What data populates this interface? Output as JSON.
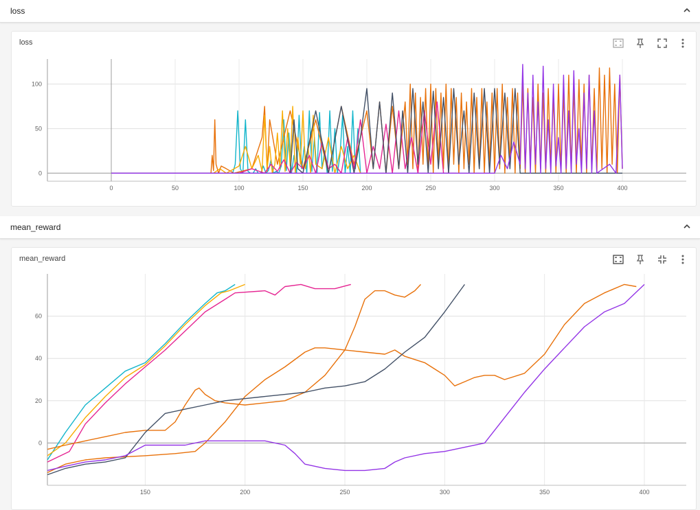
{
  "sections": {
    "loss_header": "loss",
    "reward_header": "mean_reward"
  },
  "cards": {
    "loss_title": "loss",
    "reward_title": "mean_reward"
  },
  "icons": {
    "collapse": "chevron-up-icon",
    "fit": "fit-domain-icon",
    "pin": "pin-icon",
    "expand": "fullscreen-icon",
    "collapse_full": "exit-fullscreen-icon",
    "more": "more-vert-icon"
  },
  "colors": {
    "teal": "#12b5cb",
    "orange": "#e8710a",
    "amber": "#f9ab00",
    "pink": "#e52592",
    "slate": "#425066",
    "purple": "#9334e6",
    "brown": "#7b4b2a"
  },
  "chart_data": [
    {
      "type": "line",
      "title": "loss",
      "xlabel": "",
      "ylabel": "",
      "xlim": [
        -50,
        450
      ],
      "ylim": [
        -9,
        128
      ],
      "xticks": [
        0,
        50,
        100,
        150,
        200,
        250,
        300,
        350,
        400
      ],
      "yticks": [
        0,
        50,
        100
      ],
      "grid": true,
      "legend": "none",
      "series": [
        {
          "name": "teal",
          "color": "#12b5cb",
          "x": [
            0,
            95,
            97,
            99,
            101,
            103,
            105,
            107,
            109,
            111,
            113,
            115,
            117,
            119,
            121,
            123,
            125,
            127,
            129,
            131,
            133,
            135,
            137,
            139,
            141,
            143,
            145,
            147,
            149,
            151,
            153,
            155,
            157,
            159,
            161,
            163,
            165,
            167,
            169,
            171,
            173,
            175,
            177,
            179,
            181,
            183,
            185,
            187,
            189,
            191,
            193,
            195
          ],
          "y": [
            0,
            0,
            10,
            70,
            5,
            0,
            60,
            2,
            0,
            0,
            5,
            0,
            0,
            8,
            0,
            3,
            15,
            0,
            2,
            0,
            8,
            60,
            3,
            45,
            0,
            20,
            0,
            65,
            5,
            30,
            0,
            70,
            2,
            40,
            0,
            68,
            5,
            25,
            0,
            70,
            2,
            50,
            0,
            20,
            65,
            0,
            30,
            0,
            70,
            5,
            50,
            0
          ]
        },
        {
          "name": "orange",
          "color": "#e8710a",
          "x": [
            0,
            78,
            79,
            80,
            81,
            82,
            84,
            86,
            90,
            96,
            110,
            118,
            120,
            122,
            124,
            130,
            140,
            150,
            160,
            170,
            180,
            190,
            200,
            205,
            210,
            215,
            220,
            225,
            230,
            232,
            234,
            236,
            238,
            240,
            242,
            244,
            246,
            248,
            250,
            252,
            254,
            256,
            258,
            260,
            262,
            264,
            266,
            268,
            270,
            272,
            274,
            276,
            278,
            280,
            282,
            284,
            286,
            288,
            290,
            292,
            294,
            296,
            298,
            300,
            302,
            304,
            306,
            308,
            310,
            312,
            314,
            316,
            318,
            320,
            322,
            324,
            326,
            328,
            330,
            332,
            334,
            336,
            338,
            340,
            342,
            344,
            346,
            348,
            350,
            352,
            354,
            356,
            358,
            360,
            362,
            364,
            366,
            368,
            370,
            372,
            374,
            376,
            378,
            380,
            382,
            384,
            386,
            388,
            390,
            392,
            394,
            396,
            398,
            400
          ],
          "y": [
            0,
            0,
            20,
            3,
            60,
            10,
            0,
            8,
            5,
            0,
            5,
            40,
            75,
            2,
            60,
            10,
            70,
            5,
            60,
            0,
            75,
            10,
            70,
            5,
            80,
            0,
            75,
            5,
            80,
            10,
            100,
            5,
            90,
            0,
            85,
            10,
            95,
            5,
            100,
            0,
            95,
            10,
            90,
            5,
            100,
            0,
            95,
            10,
            85,
            0,
            90,
            5,
            80,
            10,
            95,
            0,
            85,
            5,
            95,
            0,
            80,
            10,
            90,
            0,
            95,
            5,
            100,
            0,
            85,
            10,
            95,
            0,
            90,
            5,
            100,
            0,
            95,
            10,
            85,
            0,
            100,
            5,
            90,
            0,
            95,
            10,
            85,
            0,
            100,
            5,
            90,
            0,
            110,
            5,
            95,
            0,
            105,
            10,
            100,
            0,
            110,
            5,
            95,
            0,
            118,
            5,
            110,
            0,
            118,
            10,
            100,
            0,
            110,
            5
          ]
        },
        {
          "name": "amber",
          "color": "#f9ab00",
          "x": [
            0,
            80,
            85,
            90,
            100,
            105,
            110,
            115,
            118,
            120,
            122,
            124,
            126,
            128,
            130,
            132,
            134,
            136,
            138,
            140,
            142,
            144,
            146,
            148,
            150,
            152,
            154,
            156,
            158,
            160,
            165,
            170,
            175,
            180,
            185,
            190,
            195,
            200
          ],
          "y": [
            0,
            0,
            5,
            0,
            8,
            30,
            5,
            20,
            2,
            65,
            5,
            30,
            0,
            10,
            45,
            5,
            70,
            2,
            50,
            8,
            75,
            0,
            40,
            10,
            70,
            5,
            30,
            0,
            65,
            10,
            5,
            40,
            0,
            30,
            5,
            20,
            0,
            0
          ]
        },
        {
          "name": "pink",
          "color": "#e52592",
          "x": [
            0,
            100,
            110,
            120,
            125,
            130,
            135,
            140,
            145,
            150,
            155,
            160,
            165,
            170,
            175,
            180,
            185,
            190,
            195,
            200,
            205,
            210,
            215,
            220,
            225,
            230,
            235,
            240,
            245,
            250,
            255,
            260,
            270
          ],
          "y": [
            0,
            0,
            5,
            0,
            10,
            2,
            15,
            0,
            12,
            5,
            20,
            0,
            35,
            5,
            10,
            0,
            40,
            5,
            60,
            0,
            30,
            5,
            55,
            0,
            70,
            5,
            40,
            0,
            70,
            10,
            80,
            0,
            0
          ]
        },
        {
          "name": "slate",
          "color": "#425066",
          "x": [
            0,
            140,
            143,
            146,
            150,
            160,
            170,
            180,
            190,
            195,
            200,
            205,
            210,
            215,
            220,
            225,
            228,
            232,
            236,
            240,
            244,
            248,
            252,
            256,
            260,
            264,
            268,
            272,
            276,
            280,
            284,
            288,
            292,
            296,
            300,
            304,
            308,
            312,
            316,
            320,
            400
          ],
          "y": [
            0,
            0,
            60,
            5,
            0,
            70,
            0,
            75,
            0,
            40,
            95,
            5,
            80,
            0,
            90,
            5,
            70,
            0,
            95,
            10,
            80,
            0,
            92,
            5,
            85,
            0,
            95,
            10,
            70,
            0,
            90,
            5,
            95,
            0,
            95,
            10,
            90,
            5,
            95,
            0,
            0
          ]
        },
        {
          "name": "purple",
          "color": "#9334e6",
          "x": [
            0,
            300,
            305,
            310,
            315,
            320,
            322,
            324,
            326,
            328,
            330,
            332,
            334,
            336,
            338,
            340,
            342,
            344,
            346,
            348,
            350,
            352,
            354,
            356,
            358,
            360,
            362,
            364,
            366,
            368,
            370,
            372,
            374,
            376,
            378,
            380,
            385,
            390,
            395,
            398,
            400
          ],
          "y": [
            0,
            0,
            20,
            5,
            35,
            10,
            122,
            5,
            90,
            0,
            110,
            10,
            80,
            0,
            120,
            5,
            60,
            0,
            100,
            8,
            40,
            0,
            110,
            5,
            70,
            0,
            115,
            10,
            50,
            0,
            90,
            5,
            110,
            0,
            70,
            0,
            5,
            10,
            0,
            110,
            5
          ]
        }
      ]
    },
    {
      "type": "line",
      "title": "mean_reward",
      "xlabel": "",
      "ylabel": "",
      "xlim": [
        101,
        421
      ],
      "ylim": [
        -20,
        80
      ],
      "xticks": [
        150,
        200,
        250,
        300,
        350,
        400
      ],
      "yticks": [
        0,
        20,
        40,
        60
      ],
      "grid": true,
      "legend": "none",
      "series": [
        {
          "name": "teal",
          "color": "#12b5cb",
          "x": [
            101,
            110,
            120,
            130,
            140,
            150,
            160,
            170,
            180,
            186,
            190,
            195
          ],
          "y": [
            -8,
            5,
            18,
            26,
            34,
            38,
            47,
            57,
            66,
            71,
            72,
            75
          ]
        },
        {
          "name": "amber",
          "color": "#f9ab00",
          "x": [
            101,
            110,
            120,
            130,
            140,
            150,
            160,
            170,
            180,
            188,
            192,
            200
          ],
          "y": [
            -6,
            0,
            12,
            22,
            31,
            37,
            46,
            56,
            65,
            71,
            72,
            75
          ]
        },
        {
          "name": "pink",
          "color": "#e52592",
          "x": [
            101,
            112,
            120,
            130,
            140,
            150,
            160,
            170,
            180,
            190,
            195,
            210,
            215,
            220,
            228,
            235,
            245,
            253
          ],
          "y": [
            -9,
            -4,
            9,
            19,
            28,
            36,
            44,
            53,
            62,
            68,
            71,
            72,
            70,
            74,
            75,
            73,
            73,
            75
          ]
        },
        {
          "name": "orange_low",
          "color": "#e8710a",
          "x": [
            101,
            110,
            120,
            130,
            140,
            150,
            160,
            165,
            170,
            175,
            177,
            180,
            185,
            190,
            200,
            210,
            220,
            230,
            240,
            250,
            255,
            260,
            265,
            270,
            275,
            280,
            285,
            288
          ],
          "y": [
            -3,
            -1,
            1,
            3,
            5,
            6,
            6,
            10,
            18,
            25,
            26,
            23,
            20,
            19,
            18,
            19,
            20,
            24,
            32,
            44,
            55,
            68,
            72,
            72,
            70,
            69,
            72,
            75
          ]
        },
        {
          "name": "orange_mid",
          "color": "#e8710a",
          "x": [
            101,
            110,
            120,
            130,
            150,
            165,
            175,
            180,
            190,
            200,
            210,
            220,
            230,
            235,
            240,
            250,
            260,
            270,
            275,
            280,
            290,
            300,
            305,
            310,
            315,
            320,
            325,
            330,
            340,
            350,
            360,
            370,
            380,
            390,
            396
          ],
          "y": [
            -14,
            -10,
            -8,
            -7,
            -6,
            -5,
            -4,
            0,
            10,
            22,
            30,
            36,
            43,
            45,
            45,
            44,
            43,
            42,
            44,
            41,
            38,
            32,
            27,
            29,
            31,
            32,
            32,
            30,
            33,
            42,
            56,
            66,
            71,
            75,
            74
          ]
        },
        {
          "name": "slate",
          "color": "#425066",
          "x": [
            101,
            110,
            120,
            130,
            140,
            150,
            160,
            170,
            180,
            190,
            200,
            210,
            220,
            230,
            240,
            250,
            260,
            270,
            280,
            290,
            300,
            310
          ],
          "y": [
            -15,
            -12,
            -10,
            -9,
            -7,
            5,
            14,
            16,
            18,
            20,
            21,
            22,
            23,
            24,
            26,
            27,
            29,
            35,
            43,
            50,
            62,
            75
          ]
        },
        {
          "name": "purple",
          "color": "#9334e6",
          "x": [
            101,
            110,
            120,
            130,
            140,
            150,
            160,
            170,
            180,
            190,
            200,
            210,
            220,
            225,
            230,
            240,
            250,
            260,
            270,
            275,
            280,
            290,
            300,
            310,
            320,
            330,
            340,
            350,
            360,
            370,
            380,
            390,
            400
          ],
          "y": [
            -13,
            -11,
            -9,
            -8,
            -6,
            -1,
            -1,
            -1,
            1,
            1,
            1,
            1,
            -1,
            -5,
            -10,
            -12,
            -13,
            -13,
            -12,
            -9,
            -7,
            -5,
            -4,
            -2,
            0,
            12,
            24,
            35,
            45,
            55,
            62,
            66,
            75
          ]
        }
      ]
    }
  ]
}
